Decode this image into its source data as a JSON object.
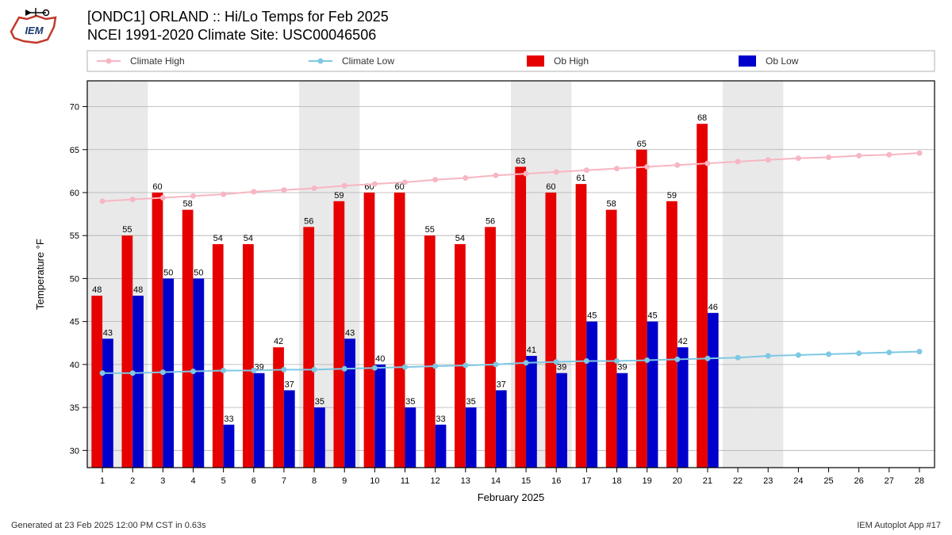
{
  "header": {
    "line1": "[ONDC1] ORLAND :: Hi/Lo Temps for Feb 2025",
    "line2": "NCEI 1991-2020 Climate Site: USC00046506"
  },
  "footer": {
    "left": "Generated at 23 Feb 2025 12:00 PM CST in 0.63s",
    "right": "IEM Autoplot App #17"
  },
  "chart": {
    "type": "bar+line",
    "background_color": "#ffffff",
    "plot_bg": "#ffffff",
    "weekend_bg": "#e9e9e9",
    "grid_color": "#b0b0b0",
    "border_color": "#000000",
    "title_fontsize": 18,
    "xlabel": "February 2025",
    "ylabel": "Temperature °F",
    "label_fontsize": 13,
    "tick_fontsize": 11,
    "bar_label_fontsize": 11,
    "ylim": [
      28,
      73
    ],
    "ytick_step": 5,
    "yticks": [
      30,
      35,
      40,
      45,
      50,
      55,
      60,
      65,
      70
    ],
    "days": [
      1,
      2,
      3,
      4,
      5,
      6,
      7,
      8,
      9,
      10,
      11,
      12,
      13,
      14,
      15,
      16,
      17,
      18,
      19,
      20,
      21,
      22,
      23,
      24,
      25,
      26,
      27,
      28
    ],
    "weekend_days": [
      1,
      2,
      8,
      9,
      15,
      16,
      22,
      23
    ],
    "bar_width": 0.36,
    "colors": {
      "ob_high": "#e60000",
      "ob_low": "#0000cc",
      "climate_high": "#f7b6c2",
      "climate_low": "#7ec8e3",
      "bar_label": "#000000"
    },
    "legend": {
      "border_color": "#b0b0b0",
      "bg": "#ffffff",
      "fontsize": 12,
      "items": [
        {
          "label": "Climate High",
          "type": "line",
          "color": "#f7b6c2"
        },
        {
          "label": "Climate Low",
          "type": "line",
          "color": "#7ec8e3"
        },
        {
          "label": "Ob High",
          "type": "swatch",
          "color": "#e60000"
        },
        {
          "label": "Ob Low",
          "type": "swatch",
          "color": "#0000cc"
        }
      ]
    },
    "ob_high": [
      48,
      55,
      60,
      58,
      54,
      54,
      42,
      56,
      59,
      60,
      60,
      55,
      54,
      56,
      63,
      60,
      61,
      58,
      65,
      59,
      68
    ],
    "ob_low": [
      43,
      48,
      50,
      50,
      33,
      39,
      37,
      35,
      43,
      40,
      35,
      33,
      35,
      37,
      41,
      39,
      45,
      39,
      45,
      42,
      46
    ],
    "climate_high": [
      59.0,
      59.2,
      59.4,
      59.6,
      59.8,
      60.1,
      60.3,
      60.5,
      60.8,
      61.0,
      61.2,
      61.5,
      61.7,
      62.0,
      62.2,
      62.4,
      62.6,
      62.8,
      63.0,
      63.2,
      63.4,
      63.6,
      63.8,
      64.0,
      64.1,
      64.3,
      64.4,
      64.6
    ],
    "climate_low": [
      39.0,
      39.0,
      39.1,
      39.2,
      39.3,
      39.3,
      39.4,
      39.4,
      39.5,
      39.6,
      39.7,
      39.8,
      39.9,
      40.0,
      40.2,
      40.3,
      40.4,
      40.4,
      40.5,
      40.6,
      40.7,
      40.8,
      41.0,
      41.1,
      41.2,
      41.3,
      41.4,
      41.5
    ],
    "line_width": 2,
    "marker_radius": 3.5
  }
}
